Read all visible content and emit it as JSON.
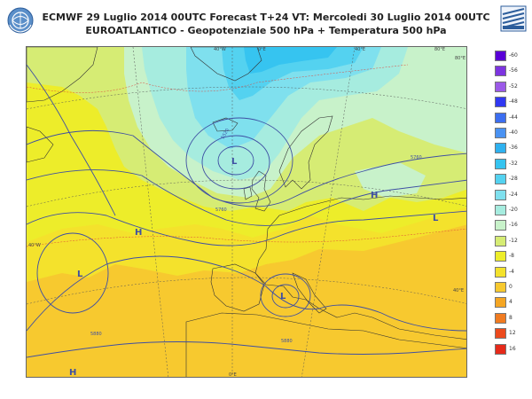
{
  "header": {
    "line1": "ECMWF 29 Luglio 2014 00UTC Forecast T+24 VT: Mercoledi 30 Luglio 2014 00UTC",
    "line2": "EUROATLANTICO - Geopotenziale 500 hPa + Temperatura 500 hPa"
  },
  "logos": {
    "left_icon": "un-wreath-logo",
    "right_icon": "weather-service-logo"
  },
  "grid_labels": {
    "top_40w": "40°W",
    "top_0e": "0°E",
    "top_40e": "40°E",
    "top_80e": "80°E",
    "right_80e": "80°E",
    "right_40e": "40°E",
    "left_40w": "40°W",
    "bottom_0e": "0°E"
  },
  "pressure_centres": {
    "low_north": "L",
    "low_atlantic": "L",
    "low_central": "L",
    "low_east": "L",
    "high_atlantic": "H",
    "high_europe": "H",
    "high_south": "H"
  },
  "contour_labels": {
    "c5520": "5520",
    "c5760a": "5760",
    "c5760b": "5760",
    "c5880a": "5880",
    "c5880b": "5880"
  },
  "legend": {
    "items": [
      {
        "label": "-60",
        "color": "#5a00d7"
      },
      {
        "label": "-56",
        "color": "#7d34e0"
      },
      {
        "label": "-52",
        "color": "#9c5ae8"
      },
      {
        "label": "-48",
        "color": "#3038f2"
      },
      {
        "label": "-44",
        "color": "#3c6ef0"
      },
      {
        "label": "-40",
        "color": "#4a92f2"
      },
      {
        "label": "-36",
        "color": "#2fb1ef"
      },
      {
        "label": "-32",
        "color": "#36c4f0"
      },
      {
        "label": "-28",
        "color": "#54d2f0"
      },
      {
        "label": "-24",
        "color": "#7fe0ee"
      },
      {
        "label": "-20",
        "color": "#a6ecdf"
      },
      {
        "label": "-16",
        "color": "#c8f2ca"
      },
      {
        "label": "-12",
        "color": "#d6ec74"
      },
      {
        "label": "-8",
        "color": "#eded2a"
      },
      {
        "label": "-4",
        "color": "#f4e22c"
      },
      {
        "label": "0",
        "color": "#f7c92f"
      },
      {
        "label": "4",
        "color": "#f5a623"
      },
      {
        "label": "8",
        "color": "#f07b21"
      },
      {
        "label": "12",
        "color": "#ec4a1d"
      },
      {
        "label": "16",
        "color": "#e62a1a"
      }
    ]
  }
}
